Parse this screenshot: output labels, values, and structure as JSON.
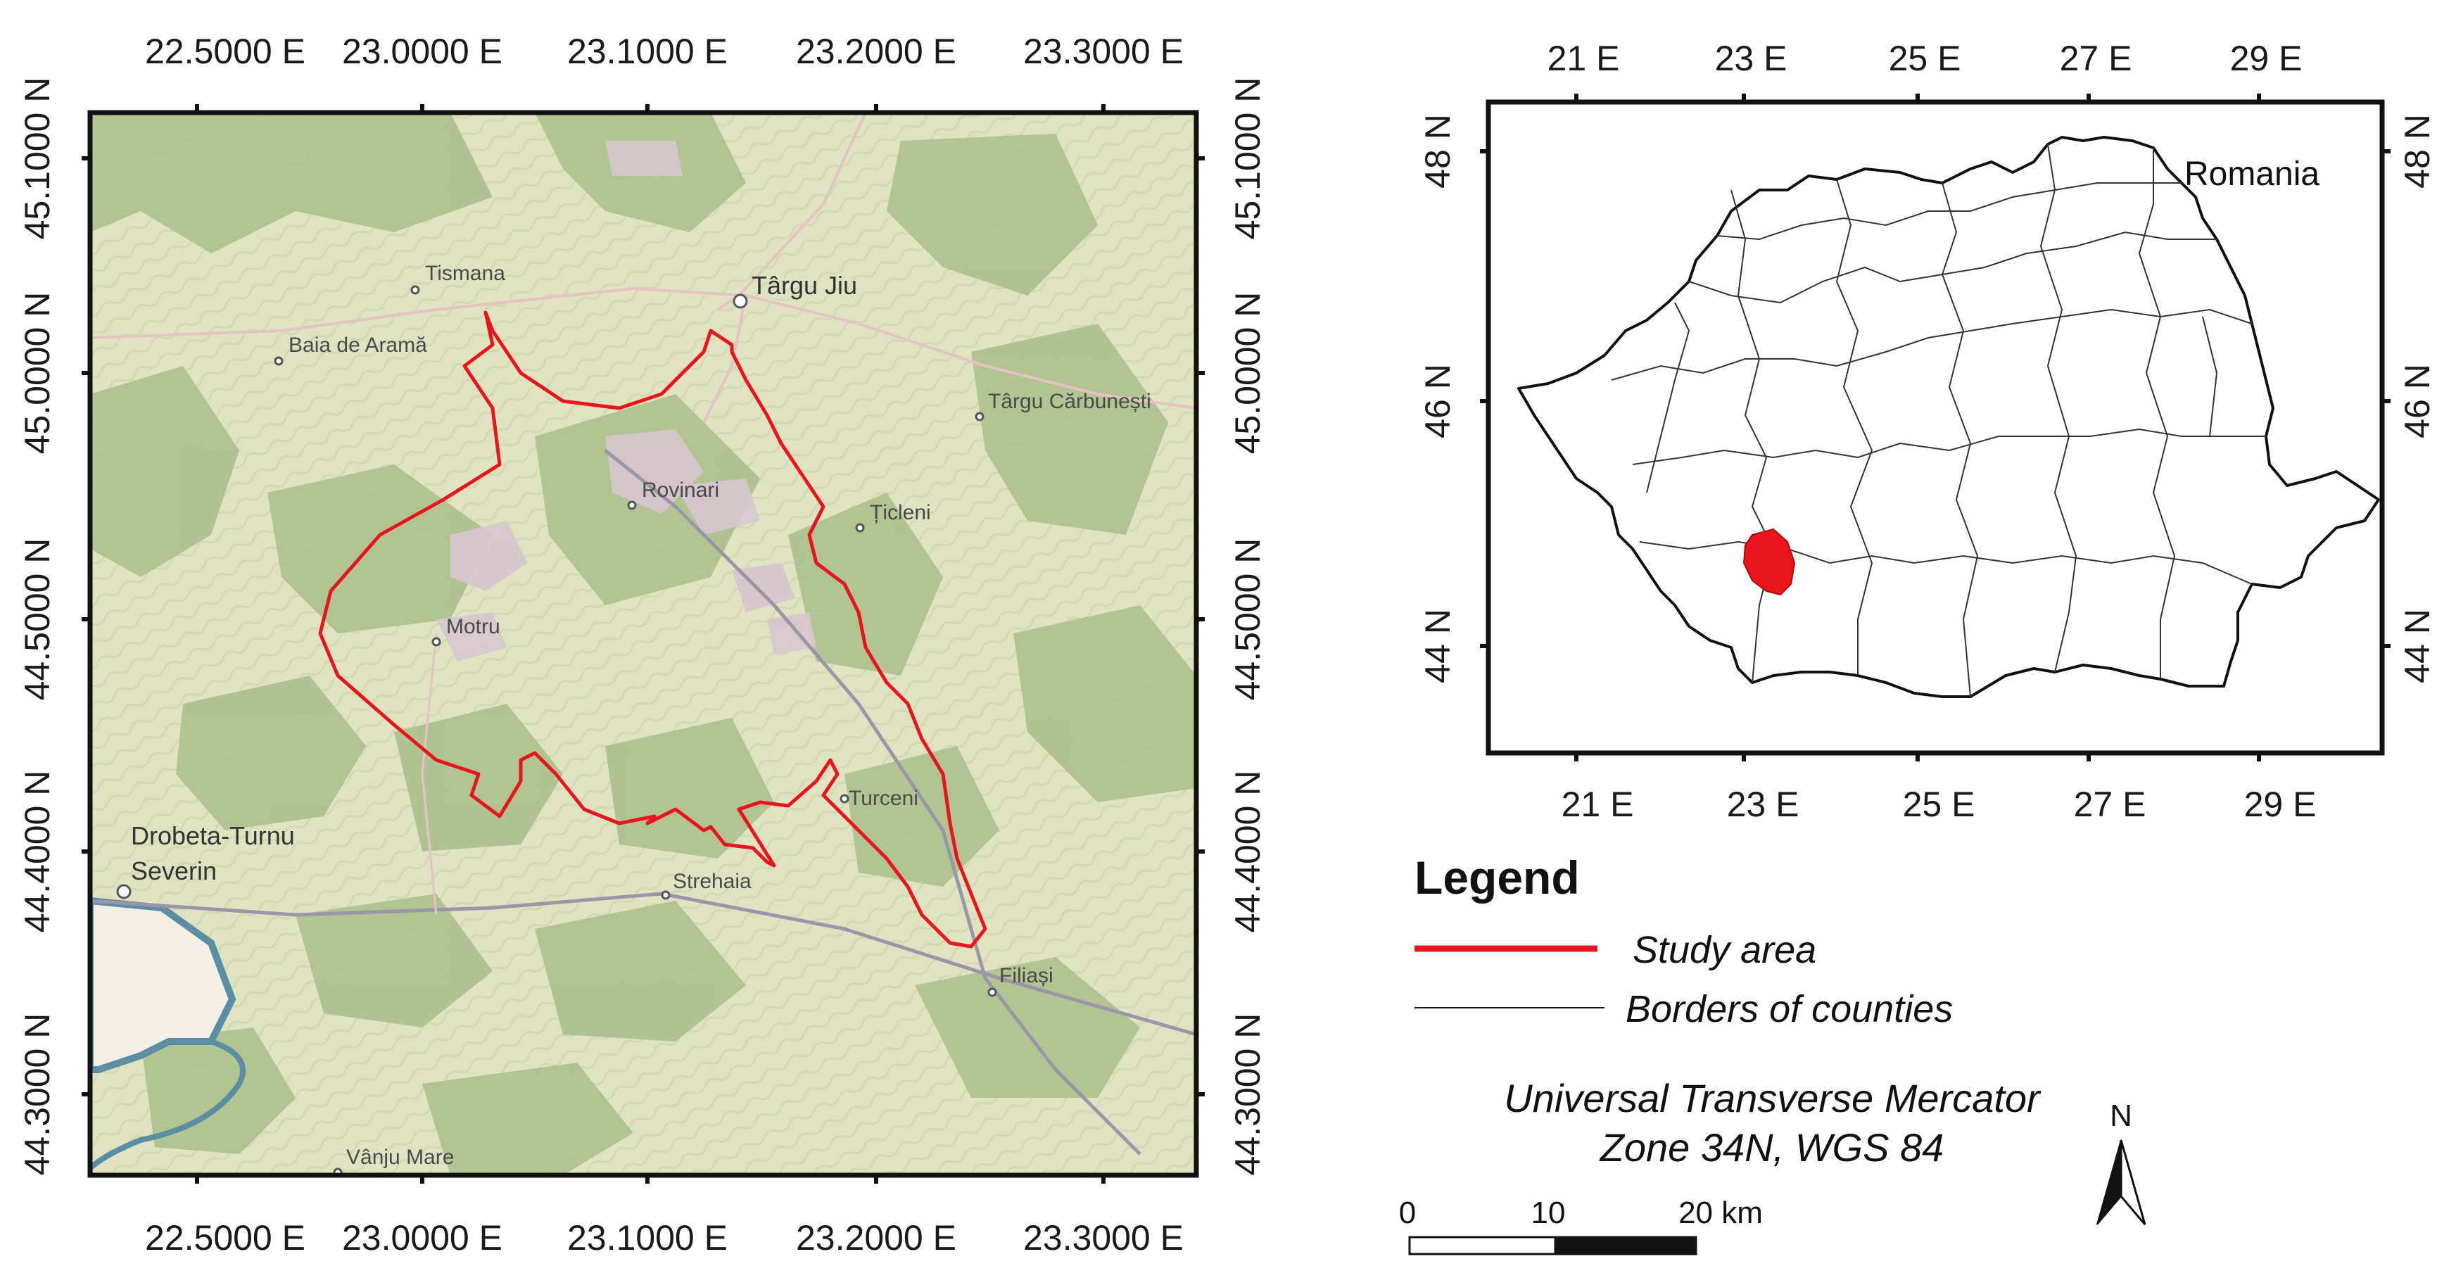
{
  "left_map": {
    "x_ticks": [
      "22.5000 E",
      "23.0000 E",
      "23.1000 E",
      "23.2000 E",
      "23.3000 E"
    ],
    "y_ticks": [
      "45.1000 N",
      "45.0000 N",
      "44.5000 N",
      "44.4000 N",
      "44.3000 N"
    ],
    "places": [
      "Tismana",
      "Târgu Jiu",
      "Baia de Aramă",
      "Târgu Cărbunești",
      "Rovinari",
      "Țicleni",
      "Motru",
      "Turceni",
      "Drobeta-Turnu",
      "Severin",
      "Strehaia",
      "Filiași",
      "Vânju Mare"
    ]
  },
  "right_map": {
    "country_label": "Romania",
    "x_ticks": [
      "21 E",
      "23 E",
      "25 E",
      "27 E",
      "29 E"
    ],
    "y_ticks": [
      "48 N",
      "46 N",
      "44 N"
    ]
  },
  "legend": {
    "title": "Legend",
    "items": [
      {
        "label": "Study area",
        "color": "#e8161c"
      },
      {
        "label": "Borders of counties",
        "color": "#111111"
      }
    ]
  },
  "projection": [
    "Universal Transverse Mercator",
    "Zone 34N, WGS 84"
  ],
  "scale_bar": {
    "labels": [
      "0",
      "10",
      "20 km"
    ]
  },
  "north_arrow": {
    "label": "N",
    "icon": "north-arrow-icon"
  },
  "colors": {
    "study_area": "#e8161c",
    "map_bg": "#dfe3c2",
    "forest": "#a9be8a"
  }
}
